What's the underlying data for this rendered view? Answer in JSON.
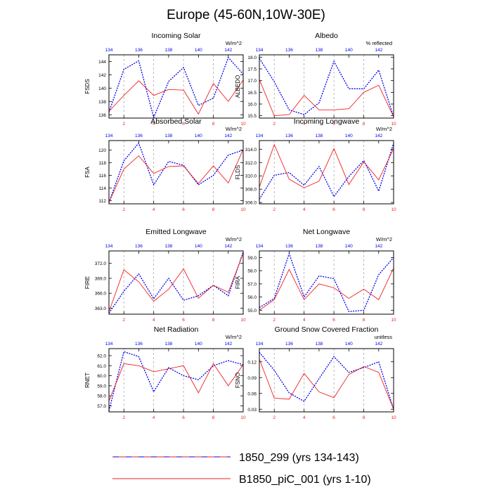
{
  "figure": {
    "title": "Europe (45-60N,10W-30E)",
    "colors": {
      "blue": "#0000ee",
      "red": "#ee2222",
      "axis": "#000000",
      "grid": "#aaaaaa"
    }
  },
  "legend": {
    "entries": [
      {
        "label": "1850_299 (yrs 134-143)",
        "color": "#0000ee",
        "style": "dashed"
      },
      {
        "label": "B1850_piC_001 (yrs 1-10)",
        "color": "#ee2222",
        "style": "solid"
      }
    ]
  },
  "chart_data": [
    {
      "type": "line",
      "title": "Incoming Solar",
      "ylabel": "FSDS",
      "units": "W/m^2",
      "ylim": [
        135.5,
        145
      ],
      "yticks": [
        136,
        138,
        140,
        142,
        144
      ],
      "ytick_labels": [
        "136",
        "138",
        "140",
        "142",
        "144"
      ],
      "x": [
        1,
        2,
        3,
        4,
        5,
        6,
        7,
        8,
        9,
        10
      ],
      "series": [
        {
          "name": "1850_299 (yrs 134-143)",
          "color": "#0000ee",
          "style": "dashed",
          "values": [
            136.4,
            142.8,
            144.1,
            135.6,
            141.0,
            143.1,
            137.4,
            138.5,
            144.6,
            142.1
          ]
        },
        {
          "name": "B1850_piC_001 (yrs 1-10)",
          "color": "#ee2222",
          "style": "solid",
          "values": [
            136.5,
            138.9,
            141.1,
            138.9,
            139.8,
            139.7,
            136.1,
            140.7,
            138.0,
            141.2
          ]
        }
      ]
    },
    {
      "type": "line",
      "title": "Albedo",
      "ylabel": "ALBEDO",
      "units": "% reflected",
      "ylim": [
        15.4,
        18.1
      ],
      "yticks": [
        15.5,
        16.0,
        16.5,
        17.0,
        17.5,
        18.0
      ],
      "ytick_labels": [
        "15.5",
        "16.0",
        "16.5",
        "17.0",
        "17.5",
        "18.0"
      ],
      "x": [
        1,
        2,
        3,
        4,
        5,
        6,
        7,
        8,
        9,
        10
      ],
      "series": [
        {
          "name": "1850_299 (yrs 134-143)",
          "color": "#0000ee",
          "style": "dashed",
          "values": [
            17.95,
            16.95,
            15.75,
            15.55,
            16.05,
            17.82,
            16.65,
            16.65,
            17.45,
            15.45
          ]
        },
        {
          "name": "B1850_piC_001 (yrs 1-10)",
          "color": "#ee2222",
          "style": "solid",
          "values": [
            17.05,
            15.5,
            15.55,
            16.37,
            15.75,
            15.75,
            15.8,
            16.5,
            16.8,
            15.45
          ]
        }
      ]
    },
    {
      "type": "line",
      "title": "Absorbed Solar",
      "ylabel": "FSA",
      "units": "W/m^2",
      "ylim": [
        111.5,
        121.5
      ],
      "yticks": [
        112,
        114,
        116,
        118,
        120
      ],
      "ytick_labels": [
        "112",
        "114",
        "116",
        "118",
        "120"
      ],
      "x": [
        1,
        2,
        3,
        4,
        5,
        6,
        7,
        8,
        9,
        10
      ],
      "series": [
        {
          "name": "1850_299 (yrs 134-143)",
          "color": "#0000ee",
          "style": "dashed",
          "values": [
            111.7,
            118.3,
            121.1,
            114.5,
            118.2,
            117.6,
            114.5,
            116.0,
            119.2,
            120.0
          ]
        },
        {
          "name": "B1850_piC_001 (yrs 1-10)",
          "color": "#ee2222",
          "style": "solid",
          "values": [
            111.7,
            117.0,
            119.1,
            116.3,
            117.4,
            117.5,
            114.7,
            117.5,
            114.8,
            120.1
          ]
        }
      ]
    },
    {
      "type": "line",
      "title": "Incoming Longwave",
      "ylabel": "FLDS",
      "units": "W/m^2",
      "ylim": [
        305.8,
        315.3
      ],
      "yticks": [
        306,
        308,
        310,
        312,
        314
      ],
      "ytick_labels": [
        "306.0",
        "308.0",
        "310.0",
        "312.0",
        "314.0"
      ],
      "x": [
        1,
        2,
        3,
        4,
        5,
        6,
        7,
        8,
        9,
        10
      ],
      "series": [
        {
          "name": "1850_299 (yrs 134-143)",
          "color": "#0000ee",
          "style": "dashed",
          "values": [
            306.5,
            310.1,
            310.5,
            308.6,
            311.4,
            306.9,
            309.9,
            312.3,
            307.7,
            314.9
          ]
        },
        {
          "name": "B1850_piC_001 (yrs 1-10)",
          "color": "#ee2222",
          "style": "solid",
          "values": [
            308.3,
            314.7,
            309.5,
            308.2,
            309.2,
            314.1,
            308.7,
            312.1,
            309.4,
            314.1
          ]
        }
      ]
    },
    {
      "type": "line",
      "title": "Emitted Longwave",
      "ylabel": "FIRE",
      "units": "W/m^2",
      "ylim": [
        361.8,
        374.5
      ],
      "yticks": [
        363,
        366,
        369,
        372
      ],
      "ytick_labels": [
        "363.0",
        "366.0",
        "369.0",
        "372.0"
      ],
      "x": [
        1,
        2,
        3,
        4,
        5,
        6,
        7,
        8,
        9,
        10
      ],
      "series": [
        {
          "name": "1850_299 (yrs 134-143)",
          "color": "#0000ee",
          "style": "dashed",
          "values": [
            362.0,
            366.4,
            369.9,
            364.9,
            369.0,
            364.6,
            365.5,
            367.6,
            365.5,
            374.3
          ]
        },
        {
          "name": "B1850_piC_001 (yrs 1-10)",
          "color": "#ee2222",
          "style": "solid",
          "values": [
            362.3,
            370.7,
            368.3,
            364.4,
            366.8,
            370.9,
            365.0,
            367.6,
            366.2,
            374.0
          ]
        }
      ]
    },
    {
      "type": "line",
      "title": "Net Longwave",
      "ylabel": "FIRA",
      "units": "W/m^2",
      "ylim": [
        54.7,
        59.5
      ],
      "yticks": [
        55,
        56,
        57,
        58,
        59
      ],
      "ytick_labels": [
        "55.0",
        "56.0",
        "57.0",
        "58.0",
        "59.0"
      ],
      "x": [
        1,
        2,
        3,
        4,
        5,
        6,
        7,
        8,
        9,
        10
      ],
      "series": [
        {
          "name": "1850_299 (yrs 134-143)",
          "color": "#0000ee",
          "style": "dashed",
          "values": [
            55.2,
            55.9,
            59.3,
            56.0,
            57.6,
            57.4,
            54.9,
            55.0,
            57.7,
            59.0
          ]
        },
        {
          "name": "B1850_piC_001 (yrs 1-10)",
          "color": "#ee2222",
          "style": "solid",
          "values": [
            55.0,
            55.8,
            58.1,
            55.8,
            57.0,
            56.7,
            55.9,
            56.6,
            55.8,
            58.2
          ]
        }
      ]
    },
    {
      "type": "line",
      "title": "Net Radiation",
      "ylabel": "RNET",
      "units": "W/m^2",
      "ylim": [
        56.4,
        62.7
      ],
      "yticks": [
        57,
        58,
        59,
        60,
        61,
        62
      ],
      "ytick_labels": [
        "57.0",
        "58.0",
        "59.0",
        "60.0",
        "61.0",
        "62.0"
      ],
      "x": [
        1,
        2,
        3,
        4,
        5,
        6,
        7,
        8,
        9,
        10
      ],
      "series": [
        {
          "name": "1850_299 (yrs 134-143)",
          "color": "#0000ee",
          "style": "dashed",
          "values": [
            56.5,
            62.4,
            61.9,
            58.4,
            60.8,
            60.0,
            59.6,
            61.0,
            61.5,
            61.1
          ]
        },
        {
          "name": "B1850_piC_001 (yrs 1-10)",
          "color": "#ee2222",
          "style": "solid",
          "values": [
            57.5,
            61.2,
            61.0,
            60.4,
            60.7,
            61.0,
            58.3,
            61.2,
            59.0,
            61.1
          ]
        }
      ]
    },
    {
      "type": "line",
      "title": "Ground Snow Covered Fraction",
      "ylabel": "FSNO",
      "units": "unitless",
      "ylim": [
        0.025,
        0.145
      ],
      "yticks": [
        0.03,
        0.06,
        0.09,
        0.12
      ],
      "ytick_labels": [
        "0.03",
        "0.06",
        "0.09",
        "0.12"
      ],
      "x": [
        1,
        2,
        3,
        4,
        5,
        6,
        7,
        8,
        9,
        10
      ],
      "series": [
        {
          "name": "1850_299 (yrs 134-143)",
          "color": "#0000ee",
          "style": "dashed",
          "values": [
            0.138,
            0.104,
            0.061,
            0.045,
            0.088,
            0.13,
            0.1,
            0.109,
            0.12,
            0.03
          ]
        },
        {
          "name": "B1850_piC_001 (yrs 1-10)",
          "color": "#ee2222",
          "style": "solid",
          "values": [
            0.125,
            0.051,
            0.049,
            0.098,
            0.063,
            0.052,
            0.096,
            0.111,
            0.1,
            0.03
          ]
        }
      ]
    }
  ],
  "axes": {
    "bottom_ticks": [
      2,
      4,
      6,
      8,
      10
    ],
    "bottom_tick_labels": [
      "2",
      "4",
      "6",
      "8",
      "10"
    ],
    "top_ticks": [
      1,
      3,
      5,
      7,
      9
    ],
    "top_tick_labels": [
      "134",
      "136",
      "138",
      "140",
      "142"
    ]
  }
}
